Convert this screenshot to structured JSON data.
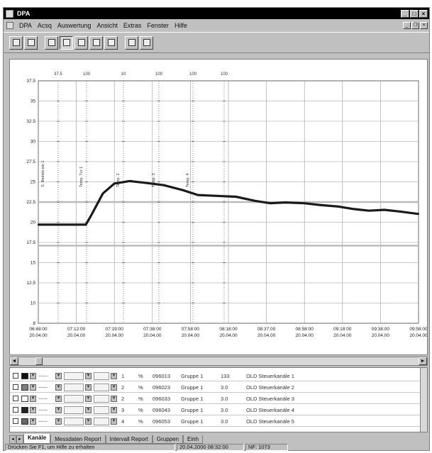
{
  "window": {
    "title": "DPA"
  },
  "menu": [
    "DPA",
    "Acsq",
    "Auswertung",
    "Ansicht",
    "Extras",
    "Fenster",
    "Hilfe"
  ],
  "toolbar": {
    "buttons": [
      "open-icon",
      "save-icon",
      "print-icon",
      "graph-icon",
      "table-icon",
      "marker-icon",
      "zoom-icon",
      "cursor-icon",
      "export-icon"
    ]
  },
  "chart_data": {
    "type": "line",
    "x_ticks": [
      [
        "06:48:00",
        "20.04.00"
      ],
      [
        "07:12:00",
        "20.04.00"
      ],
      [
        "07:19:00",
        "20.04.00"
      ],
      [
        "07:38:00",
        "20.04.00"
      ],
      [
        "07:58:00",
        "20.04.00"
      ],
      [
        "08:18:00",
        "20.04.00"
      ],
      [
        "08:37:00",
        "20.04.00"
      ],
      [
        "08:58:00",
        "20.04.00"
      ],
      [
        "09:18:00",
        "20.04.00"
      ],
      [
        "09:38:00",
        "20.04.00"
      ],
      [
        "09:58:00",
        "20.04.00"
      ]
    ],
    "y_ticks": [
      "37.5",
      "35",
      "32.5",
      "30",
      "27.5",
      "25",
      "22.5",
      "20",
      "17.5",
      "15",
      "12.5",
      "10",
      "8"
    ],
    "top_scale": [
      "37.5",
      "100",
      "10",
      "100",
      "100",
      "100"
    ],
    "axis_labels": [
      "S. Betrieb ein 1",
      "Temp. Tur 1",
      "Temp. 2",
      "Temp. 3",
      "Temp. 4"
    ],
    "series": [
      {
        "name": "",
        "color": "#1a1a1a",
        "points": [
          [
            0.0,
            20.0
          ],
          [
            0.12,
            20.0
          ],
          [
            0.125,
            20.0
          ],
          [
            0.14,
            21.2
          ],
          [
            0.17,
            23.8
          ],
          [
            0.2,
            25.0
          ],
          [
            0.24,
            25.3
          ],
          [
            0.28,
            25.1
          ],
          [
            0.33,
            24.8
          ],
          [
            0.38,
            24.2
          ],
          [
            0.42,
            23.6
          ],
          [
            0.47,
            23.5
          ],
          [
            0.52,
            23.4
          ],
          [
            0.57,
            22.9
          ],
          [
            0.61,
            22.6
          ],
          [
            0.65,
            22.7
          ],
          [
            0.7,
            22.6
          ],
          [
            0.74,
            22.4
          ],
          [
            0.79,
            22.2
          ],
          [
            0.83,
            21.9
          ],
          [
            0.87,
            21.7
          ],
          [
            0.91,
            21.8
          ],
          [
            0.95,
            21.6
          ],
          [
            1.0,
            21.3
          ]
        ]
      }
    ]
  },
  "grid_rows": [
    {
      "color": "#111111",
      "wave": "~~~",
      "n1": "1",
      "n2": "3",
      "unit": "%",
      "id": "096013",
      "group": "Gruppe 1",
      "val": "133",
      "desc": "OLD Steuerkanäle 1"
    },
    {
      "color": "#808080",
      "wave": "~~~",
      "n1": "2",
      "n2": "3",
      "unit": "%",
      "id": "096023",
      "group": "Gruppe 1",
      "val": "3.0",
      "desc": "OLD Steuerkanäle 2"
    },
    {
      "color": "#ffffff",
      "wave": "~~~",
      "n1": "2",
      "n2": "3",
      "unit": "%",
      "id": "096033",
      "group": "Gruppe 1",
      "val": "3.0",
      "desc": "OLD Steuerkanäle 3"
    },
    {
      "color": "#222222",
      "wave": "~~~",
      "n1": "3",
      "n2": "3",
      "unit": "%",
      "id": "096043",
      "group": "Gruppe 1",
      "val": "3.0",
      "desc": "OLD Steuerkanäle 4"
    },
    {
      "color": "#666666",
      "wave": "~~~",
      "n1": "4",
      "n2": "3",
      "unit": "%",
      "id": "096053",
      "group": "Gruppe 1",
      "val": "3.0",
      "desc": "OLD Steuerkanäle 5"
    }
  ],
  "tabs": [
    "Kanäle",
    "Messdaten Report",
    "Intervall Report",
    "Gruppen",
    "Einh"
  ],
  "status": {
    "left": "Drücken Sie F1, um Hilfe zu erhalten",
    "date": "20.04.2000 08:32:00",
    "ram": "NF: 1073"
  }
}
